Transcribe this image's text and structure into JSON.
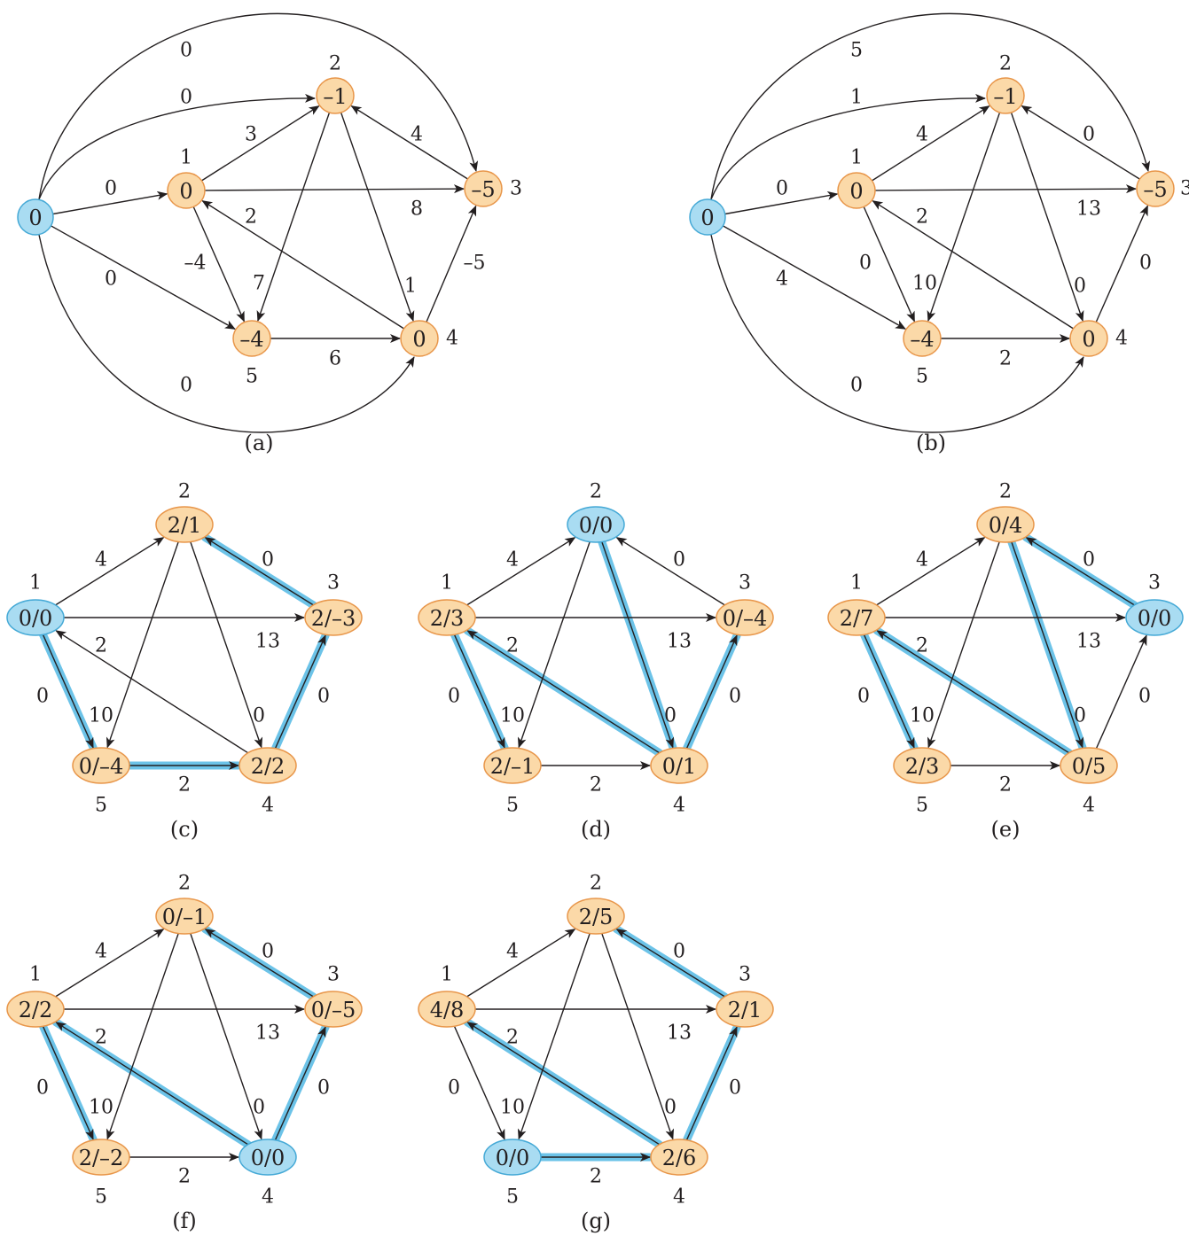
{
  "colors": {
    "vertex": "#fbd9a8",
    "vertex_stroke": "#e8964a",
    "source": "#a9dcf2",
    "source_stroke": "#45a9d6",
    "edge": "#231f20",
    "highlight": "#6cc3e8"
  },
  "panels": [
    {
      "id": "a",
      "caption": "(a)",
      "nodes": [
        {
          "id": "s",
          "value": "0",
          "source": true
        },
        {
          "id": "n1",
          "value": "0",
          "label": "1"
        },
        {
          "id": "n2",
          "value": "–1",
          "label": "2"
        },
        {
          "id": "n3",
          "value": "–5",
          "label": "3"
        },
        {
          "id": "n4",
          "value": "0",
          "label": "4"
        },
        {
          "id": "n5",
          "value": "–4",
          "label": "5"
        }
      ],
      "edges": [
        {
          "from": "s",
          "to": "n1",
          "weight": "0"
        },
        {
          "from": "s",
          "to": "n2",
          "weight": "0"
        },
        {
          "from": "s",
          "to": "n3",
          "weight": "0"
        },
        {
          "from": "s",
          "to": "n4",
          "weight": "0"
        },
        {
          "from": "s",
          "to": "n5",
          "weight": "0"
        },
        {
          "from": "n1",
          "to": "n2",
          "weight": "3"
        },
        {
          "from": "n1",
          "to": "n3",
          "weight": "8"
        },
        {
          "from": "n1",
          "to": "n5",
          "weight": "–4"
        },
        {
          "from": "n2",
          "to": "n5",
          "weight": "7"
        },
        {
          "from": "n2",
          "to": "n4",
          "weight": "1"
        },
        {
          "from": "n3",
          "to": "n2",
          "weight": "4"
        },
        {
          "from": "n4",
          "to": "n1",
          "weight": "2"
        },
        {
          "from": "n4",
          "to": "n3",
          "weight": "–5"
        },
        {
          "from": "n5",
          "to": "n4",
          "weight": "6"
        }
      ]
    },
    {
      "id": "b",
      "caption": "(b)",
      "nodes": [
        {
          "id": "s",
          "value": "0",
          "source": true
        },
        {
          "id": "n1",
          "value": "0",
          "label": "1"
        },
        {
          "id": "n2",
          "value": "–1",
          "label": "2"
        },
        {
          "id": "n3",
          "value": "–5",
          "label": "3"
        },
        {
          "id": "n4",
          "value": "0",
          "label": "4"
        },
        {
          "id": "n5",
          "value": "–4",
          "label": "5"
        }
      ],
      "edges": [
        {
          "from": "s",
          "to": "n1",
          "weight": "0"
        },
        {
          "from": "s",
          "to": "n2",
          "weight": "1"
        },
        {
          "from": "s",
          "to": "n3",
          "weight": "5"
        },
        {
          "from": "s",
          "to": "n4",
          "weight": "0"
        },
        {
          "from": "s",
          "to": "n5",
          "weight": "4"
        },
        {
          "from": "n1",
          "to": "n2",
          "weight": "4"
        },
        {
          "from": "n1",
          "to": "n3",
          "weight": "13"
        },
        {
          "from": "n1",
          "to": "n5",
          "weight": "0"
        },
        {
          "from": "n2",
          "to": "n5",
          "weight": "10"
        },
        {
          "from": "n2",
          "to": "n4",
          "weight": "0"
        },
        {
          "from": "n3",
          "to": "n2",
          "weight": "0"
        },
        {
          "from": "n4",
          "to": "n1",
          "weight": "2"
        },
        {
          "from": "n4",
          "to": "n3",
          "weight": "0"
        },
        {
          "from": "n5",
          "to": "n4",
          "weight": "2"
        }
      ]
    },
    {
      "id": "c",
      "caption": "(c)",
      "source": "n1",
      "nodes": [
        {
          "id": "n1",
          "value": "0/0",
          "label": "1"
        },
        {
          "id": "n2",
          "value": "2/1",
          "label": "2"
        },
        {
          "id": "n3",
          "value": "2/–3",
          "label": "3"
        },
        {
          "id": "n4",
          "value": "2/2",
          "label": "4"
        },
        {
          "id": "n5",
          "value": "0/–4",
          "label": "5"
        }
      ],
      "tree": [
        [
          "n3",
          "n2"
        ],
        [
          "n1",
          "n5"
        ],
        [
          "n5",
          "n4"
        ],
        [
          "n4",
          "n3"
        ]
      ]
    },
    {
      "id": "d",
      "caption": "(d)",
      "source": "n2",
      "nodes": [
        {
          "id": "n1",
          "value": "2/3",
          "label": "1"
        },
        {
          "id": "n2",
          "value": "0/0",
          "label": "2"
        },
        {
          "id": "n3",
          "value": "0/–4",
          "label": "3"
        },
        {
          "id": "n4",
          "value": "0/1",
          "label": "4"
        },
        {
          "id": "n5",
          "value": "2/–1",
          "label": "5"
        }
      ],
      "tree": [
        [
          "n2",
          "n4"
        ],
        [
          "n4",
          "n1"
        ],
        [
          "n4",
          "n3"
        ],
        [
          "n1",
          "n5"
        ]
      ]
    },
    {
      "id": "e",
      "caption": "(e)",
      "source": "n3",
      "nodes": [
        {
          "id": "n1",
          "value": "2/7",
          "label": "1"
        },
        {
          "id": "n2",
          "value": "0/4",
          "label": "2"
        },
        {
          "id": "n3",
          "value": "0/0",
          "label": "3"
        },
        {
          "id": "n4",
          "value": "0/5",
          "label": "4"
        },
        {
          "id": "n5",
          "value": "2/3",
          "label": "5"
        }
      ],
      "tree": [
        [
          "n3",
          "n2"
        ],
        [
          "n2",
          "n4"
        ],
        [
          "n4",
          "n1"
        ],
        [
          "n1",
          "n5"
        ]
      ]
    },
    {
      "id": "f",
      "caption": "(f)",
      "source": "n4",
      "nodes": [
        {
          "id": "n1",
          "value": "2/2",
          "label": "1"
        },
        {
          "id": "n2",
          "value": "0/–1",
          "label": "2"
        },
        {
          "id": "n3",
          "value": "0/–5",
          "label": "3"
        },
        {
          "id": "n4",
          "value": "0/0",
          "label": "4"
        },
        {
          "id": "n5",
          "value": "2/–2",
          "label": "5"
        }
      ],
      "tree": [
        [
          "n4",
          "n1"
        ],
        [
          "n4",
          "n3"
        ],
        [
          "n3",
          "n2"
        ],
        [
          "n1",
          "n5"
        ]
      ]
    },
    {
      "id": "g",
      "caption": "(g)",
      "source": "n5",
      "nodes": [
        {
          "id": "n1",
          "value": "4/8",
          "label": "1"
        },
        {
          "id": "n2",
          "value": "2/5",
          "label": "2"
        },
        {
          "id": "n3",
          "value": "2/1",
          "label": "3"
        },
        {
          "id": "n4",
          "value": "2/6",
          "label": "4"
        },
        {
          "id": "n5",
          "value": "0/0",
          "label": "5"
        }
      ],
      "tree": [
        [
          "n5",
          "n4"
        ],
        [
          "n4",
          "n1"
        ],
        [
          "n4",
          "n3"
        ],
        [
          "n3",
          "n2"
        ]
      ]
    }
  ],
  "reweighted_edges": [
    {
      "from": "n1",
      "to": "n2",
      "weight": "4"
    },
    {
      "from": "n1",
      "to": "n3",
      "weight": "13"
    },
    {
      "from": "n1",
      "to": "n5",
      "weight": "0"
    },
    {
      "from": "n2",
      "to": "n5",
      "weight": "10"
    },
    {
      "from": "n2",
      "to": "n4",
      "weight": "0"
    },
    {
      "from": "n3",
      "to": "n2",
      "weight": "0"
    },
    {
      "from": "n4",
      "to": "n1",
      "weight": "2"
    },
    {
      "from": "n4",
      "to": "n3",
      "weight": "0"
    },
    {
      "from": "n5",
      "to": "n4",
      "weight": "2"
    }
  ]
}
